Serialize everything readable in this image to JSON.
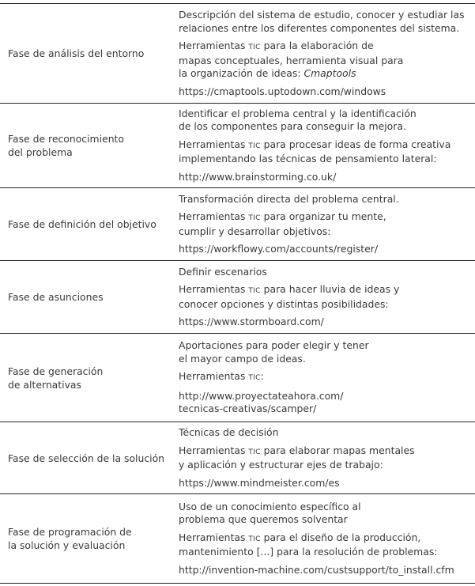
{
  "rows": [
    {
      "phase": [
        "Fase de análisis del entorno"
      ],
      "paras": [
        [
          "Descripción del sistema de estudio, conocer y estudiar las",
          "relaciones entre los diferentes componentes del sistema."
        ],
        [
          "Herramientas TIC para la elaboración de",
          "mapas conceptuales, herramienta visual para",
          "la organización de ideas: *Cmaptools*"
        ],
        [
          "https://cmaptools.uptodown.com/windows"
        ]
      ]
    },
    {
      "phase": [
        "Fase de reconocimiento",
        "del problema"
      ],
      "paras": [
        [
          "Identificar el problema central y la identificación",
          "de los componentes para conseguir la mejora."
        ],
        [
          "Herramientas TIC para procesar ideas de forma creativa",
          "implementando las técnicas de pensamiento lateral:"
        ],
        [
          "http://www.brainstorming.co.uk/"
        ]
      ]
    },
    {
      "phase": [
        "Fase de definición del objetivo"
      ],
      "paras": [
        [
          "Transformación directa del problema central."
        ],
        [
          "Herramientas TIC para organizar tu mente,",
          "cumplir y desarrollar objetivos:"
        ],
        [
          "https://workflowy.com/accounts/register/"
        ]
      ]
    },
    {
      "phase": [
        "Fase de asunciones"
      ],
      "paras": [
        [
          "Definir escenarios"
        ],
        [
          "Herramientas TIC para hacer lluvia de ideas y",
          "conocer opciones y distintas posibilidades:"
        ],
        [
          "https://www.stormboard.com/"
        ]
      ]
    },
    {
      "phase": [
        "Fase de generación",
        "de alternativas"
      ],
      "paras": [
        [
          "Aportaciones para poder elegir y tener",
          "el mayor campo de ideas."
        ],
        [
          "Herramientas TIC:"
        ],
        [
          "http://www.proyectateahora.com/",
          "tecnicas-creativas/scamper/"
        ]
      ]
    },
    {
      "phase": [
        "Fase de selección de la solución"
      ],
      "paras": [
        [
          "Técnicas de decisión"
        ],
        [
          "Herramientas TIC para elaborar mapas mentales",
          "y aplicación y estructurar ejes de trabajo:"
        ],
        [
          "https://www.mindmeister.com/es"
        ]
      ]
    },
    {
      "phase": [
        "Fase de programación de",
        "la solución y evaluación"
      ],
      "paras": [
        [
          "Uso de un conocimiento específico al",
          "problema que queremos solventar"
        ],
        [
          "Herramientas TIC para el diseño de la producción,",
          "mantenimiento [...] para la resolución de problemas:"
        ],
        [
          "http://invention-machine.com/custsupport/to_install.cfm"
        ]
      ]
    }
  ]
}
